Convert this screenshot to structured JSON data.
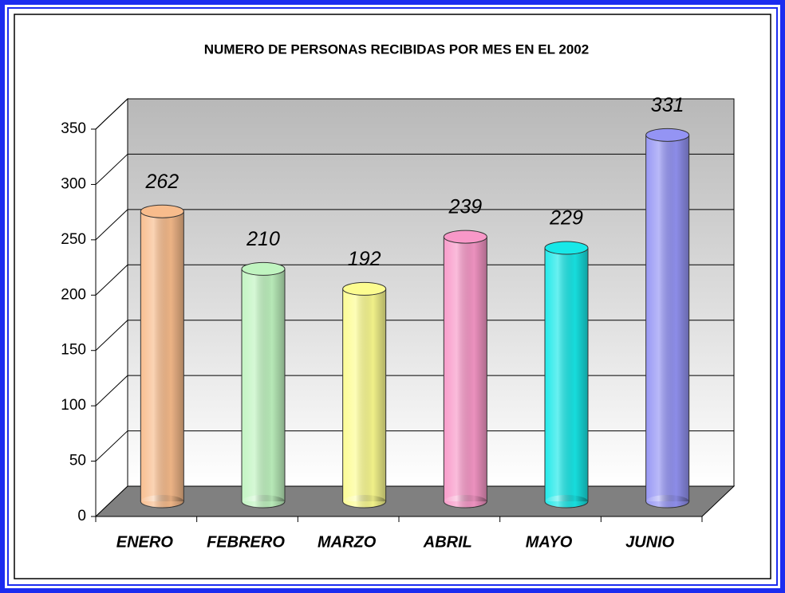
{
  "chart_data": {
    "type": "bar3d",
    "title": "NUMERO DE PERSONAS RECIBIDAS POR MES EN EL 2002",
    "categories": [
      "ENERO",
      "FEBRERO",
      "MARZO",
      "ABRIL",
      "MAYO",
      "JUNIO"
    ],
    "values": [
      262,
      210,
      192,
      239,
      229,
      331
    ],
    "colors": [
      "#f8bc8c",
      "#c0f4c0",
      "#fcfc90",
      "#f898c8",
      "#18e8e8",
      "#9494f4"
    ],
    "ylim": [
      0,
      350
    ],
    "yticks": [
      0,
      50,
      100,
      150,
      200,
      250,
      300,
      350
    ],
    "grid": true
  }
}
